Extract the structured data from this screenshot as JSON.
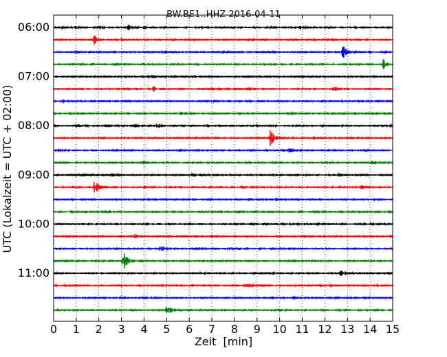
{
  "chart_data": {
    "type": "line",
    "title": "BW.BE1..HHZ 2016-04-11",
    "xlabel": "Zeit  [min]",
    "ylabel": "UTC (Lokalzeit = UTC + 02:00)",
    "xlim": [
      0,
      15
    ],
    "xticks": [
      0,
      1,
      2,
      3,
      4,
      5,
      6,
      7,
      8,
      9,
      10,
      11,
      12,
      13,
      14,
      15
    ],
    "yticks": [
      {
        "label": "06:00",
        "trace": 0
      },
      {
        "label": "07:00",
        "trace": 4
      },
      {
        "label": "08:00",
        "trace": 8
      },
      {
        "label": "09:00",
        "trace": 12
      },
      {
        "label": "10:00",
        "trace": 16
      },
      {
        "label": "11:00",
        "trace": 20
      }
    ],
    "grid": true,
    "trace_interval_min": 15,
    "colors": [
      "#000000",
      "#ff0000",
      "#0000ff",
      "#008000"
    ],
    "series": [
      {
        "start": "06:00",
        "color": "#000000",
        "events": [
          [
            0.4,
            2
          ],
          [
            1.0,
            3
          ],
          [
            2.0,
            3
          ],
          [
            3.3,
            4
          ],
          [
            4.0,
            2
          ],
          [
            10.9,
            2
          ]
        ]
      },
      {
        "start": "06:15",
        "color": "#ff0000",
        "events": [
          [
            1.8,
            6
          ],
          [
            11.5,
            1.5
          ]
        ]
      },
      {
        "start": "06:30",
        "color": "#0000ff",
        "events": [
          [
            12.8,
            10
          ],
          [
            1.0,
            1
          ]
        ]
      },
      {
        "start": "06:45",
        "color": "#008000",
        "events": [
          [
            0.8,
            1.5
          ],
          [
            14.6,
            7
          ],
          [
            11.8,
            1
          ]
        ]
      },
      {
        "start": "07:00",
        "color": "#000000",
        "events": [
          [
            1.5,
            1.5
          ],
          [
            4.2,
            1
          ]
        ]
      },
      {
        "start": "07:15",
        "color": "#ff0000",
        "events": [
          [
            4.4,
            3
          ],
          [
            8.6,
            1.5
          ],
          [
            12.4,
            2
          ]
        ]
      },
      {
        "start": "07:30",
        "color": "#0000ff",
        "events": [
          [
            0.4,
            1.5
          ],
          [
            7.0,
            1
          ]
        ]
      },
      {
        "start": "07:45",
        "color": "#008000",
        "events": [
          [
            5.6,
            1.5
          ],
          [
            10.4,
            2
          ]
        ]
      },
      {
        "start": "08:00",
        "color": "#000000",
        "events": [
          [
            1.0,
            1.5
          ],
          [
            2.3,
            1.5
          ],
          [
            3.6,
            1.5
          ],
          [
            4.6,
            4
          ],
          [
            14.9,
            1.5
          ]
        ]
      },
      {
        "start": "08:15",
        "color": "#ff0000",
        "events": [
          [
            9.6,
            14
          ],
          [
            11.5,
            1.5
          ]
        ]
      },
      {
        "start": "08:30",
        "color": "#0000ff",
        "events": [
          [
            0.2,
            1.5
          ],
          [
            10.4,
            3
          ],
          [
            11.8,
            1
          ]
        ]
      },
      {
        "start": "08:45",
        "color": "#008000",
        "events": [
          [
            4.0,
            2
          ],
          [
            12.1,
            1.5
          ],
          [
            14.1,
            2
          ]
        ]
      },
      {
        "start": "09:00",
        "color": "#000000",
        "events": [
          [
            2.6,
            1.5
          ],
          [
            6.0,
            1
          ],
          [
            12.6,
            1.5
          ]
        ]
      },
      {
        "start": "09:15",
        "color": "#ff0000",
        "events": [
          [
            1.8,
            12
          ],
          [
            13.6,
            3
          ]
        ]
      },
      {
        "start": "09:30",
        "color": "#0000ff",
        "events": [
          [
            9.3,
            2
          ],
          [
            9.7,
            2
          ],
          [
            14.2,
            1.5
          ]
        ]
      },
      {
        "start": "09:45",
        "color": "#008000",
        "events": [
          [
            8.2,
            1
          ],
          [
            1.4,
            1
          ]
        ]
      },
      {
        "start": "10:00",
        "color": "#000000",
        "events": [
          [
            4.0,
            2
          ],
          [
            14.0,
            3
          ],
          [
            8.7,
            1.5
          ]
        ]
      },
      {
        "start": "10:15",
        "color": "#ff0000",
        "events": [
          [
            3.6,
            2
          ],
          [
            7.0,
            1.5
          ]
        ]
      },
      {
        "start": "10:30",
        "color": "#0000ff",
        "events": [
          [
            4.7,
            6
          ],
          [
            6.6,
            1
          ]
        ]
      },
      {
        "start": "10:45",
        "color": "#008000",
        "events": [
          [
            3.1,
            18
          ],
          [
            10.7,
            1
          ]
        ]
      },
      {
        "start": "11:00",
        "color": "#000000",
        "events": [
          [
            12.7,
            4
          ],
          [
            6.5,
            1
          ]
        ]
      },
      {
        "start": "11:15",
        "color": "#ff0000",
        "events": [
          [
            8.5,
            3
          ]
        ]
      },
      {
        "start": "11:30",
        "color": "#0000ff",
        "events": [
          [
            9.7,
            1.5
          ],
          [
            10.6,
            1.5
          ]
        ]
      },
      {
        "start": "11:45",
        "color": "#008000",
        "events": [
          [
            2.6,
            1.5
          ],
          [
            5.0,
            8
          ]
        ]
      }
    ]
  }
}
